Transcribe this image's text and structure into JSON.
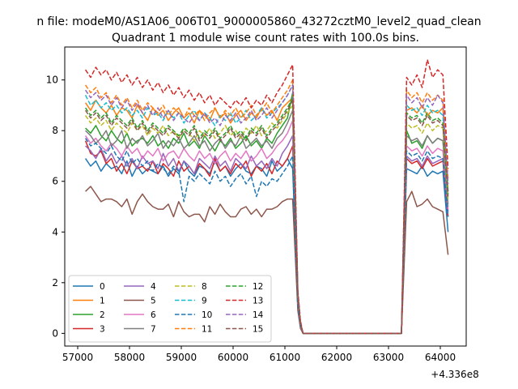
{
  "chart_data": {
    "type": "line",
    "suptitle": "n file: modeM0/AS1A06_006T01_9000005860_43272cztM0_level2_quad_clean",
    "title": "Quadrant 1 module wise count rates with 100.0s bins.",
    "xlabel": "",
    "ylabel": "",
    "x_offset_label": "+4.336e8",
    "xlim": [
      56750,
      64500
    ],
    "ylim": [
      -0.5,
      11.3
    ],
    "xticks": [
      57000,
      58000,
      59000,
      60000,
      61000,
      62000,
      63000,
      64000
    ],
    "xtick_labels": [
      "57000",
      "58000",
      "59000",
      "60000",
      "61000",
      "62000",
      "63000",
      "64000"
    ],
    "yticks": [
      0,
      2,
      4,
      6,
      8,
      10
    ],
    "ytick_labels": [
      "0",
      "2",
      "4",
      "6",
      "8",
      "10"
    ],
    "grid": false,
    "legend_position": "lower-left",
    "legend_columns": 4,
    "x_segment_1": [
      57150,
      57250,
      57350,
      57450,
      57550,
      57650,
      57750,
      57850,
      57950,
      58050,
      58150,
      58250,
      58350,
      58450,
      58550,
      58650,
      58750,
      58850,
      58950,
      59050,
      59150,
      59250,
      59350,
      59450,
      59550,
      59650,
      59750,
      59850,
      59950,
      60050,
      60150,
      60250,
      60350,
      60450,
      60550,
      60650,
      60750,
      60850,
      60950,
      61050,
      61150,
      61250,
      61300,
      61350
    ],
    "x_segment_2": [
      63250,
      63350,
      63450,
      63550,
      63650,
      63750,
      63850,
      63950,
      64050,
      64150
    ],
    "gap_value": 0,
    "series": [
      {
        "name": "0",
        "color": "#1f77b4",
        "dash": "solid",
        "v1": [
          6.9,
          6.6,
          6.8,
          6.4,
          6.7,
          6.5,
          6.6,
          6.3,
          6.8,
          6.2,
          6.6,
          6.3,
          6.5,
          6.4,
          6.3,
          6.6,
          6.2,
          6.5,
          6.3,
          6.8,
          6.4,
          6.2,
          6.6,
          6.5,
          6.3,
          6.8,
          6.4,
          6.6,
          6.2,
          6.5,
          6.7,
          6.4,
          6.3,
          6.6,
          6.5,
          6.2,
          6.8,
          6.4,
          6.6,
          6.9,
          6.5,
          1.0,
          0.3,
          0.0
        ],
        "v2": [
          0.0,
          6.5,
          6.4,
          6.3,
          6.6,
          6.2,
          6.4,
          6.3,
          6.4,
          4.0
        ]
      },
      {
        "name": "1",
        "color": "#ff7f0e",
        "dash": "solid",
        "v1": [
          9.1,
          8.8,
          9.2,
          8.9,
          8.7,
          9.0,
          8.6,
          8.9,
          8.8,
          8.5,
          9.0,
          8.7,
          8.4,
          8.9,
          8.6,
          8.8,
          8.4,
          8.7,
          8.9,
          8.5,
          8.7,
          8.3,
          8.8,
          8.6,
          8.4,
          8.9,
          8.5,
          8.7,
          8.3,
          8.6,
          8.8,
          8.4,
          8.7,
          8.5,
          8.9,
          8.6,
          8.8,
          8.4,
          8.9,
          9.1,
          9.3,
          1.4,
          0.4,
          0.0
        ],
        "v2": [
          0.0,
          8.8,
          8.9,
          8.7,
          9.0,
          8.6,
          8.8,
          8.7,
          8.9,
          5.6
        ]
      },
      {
        "name": "2",
        "color": "#2ca02c",
        "dash": "solid",
        "v1": [
          8.1,
          7.9,
          8.2,
          7.8,
          7.6,
          8.0,
          7.7,
          7.5,
          7.9,
          7.4,
          7.6,
          7.7,
          7.5,
          7.8,
          7.4,
          7.6,
          7.3,
          7.7,
          7.5,
          7.9,
          7.4,
          7.6,
          7.3,
          7.8,
          7.5,
          7.2,
          7.6,
          7.4,
          7.7,
          7.3,
          7.5,
          7.8,
          7.4,
          7.6,
          7.3,
          7.7,
          7.5,
          7.9,
          8.2,
          8.5,
          9.5,
          1.5,
          0.4,
          0.0
        ],
        "v2": [
          0.0,
          8.0,
          7.5,
          7.6,
          7.3,
          7.8,
          7.5,
          7.7,
          7.6,
          5.0
        ]
      },
      {
        "name": "3",
        "color": "#d62728",
        "dash": "solid",
        "v1": [
          7.6,
          7.1,
          7.0,
          7.2,
          6.7,
          6.9,
          6.4,
          6.7,
          6.3,
          6.8,
          6.5,
          6.6,
          6.4,
          6.8,
          6.3,
          6.7,
          6.5,
          6.2,
          6.8,
          6.4,
          6.6,
          6.3,
          6.7,
          6.5,
          6.2,
          6.9,
          6.4,
          6.6,
          6.3,
          6.7,
          6.5,
          6.8,
          6.2,
          6.6,
          6.4,
          6.7,
          6.3,
          6.8,
          6.6,
          6.9,
          7.4,
          1.2,
          0.3,
          0.0
        ],
        "v2": [
          0.0,
          6.9,
          6.7,
          6.8,
          6.5,
          6.9,
          6.6,
          6.7,
          6.8,
          4.6
        ]
      },
      {
        "name": "4",
        "color": "#9467bd",
        "dash": "solid",
        "v1": [
          7.4,
          7.2,
          6.9,
          7.3,
          6.8,
          7.1,
          6.7,
          7.0,
          6.6,
          6.9,
          6.5,
          7.0,
          6.7,
          6.8,
          6.5,
          7.1,
          6.6,
          6.9,
          6.4,
          6.8,
          6.6,
          6.3,
          6.9,
          6.7,
          6.5,
          7.0,
          6.6,
          6.8,
          6.4,
          6.9,
          6.7,
          6.5,
          7.0,
          6.6,
          6.8,
          6.5,
          6.9,
          6.6,
          7.1,
          7.4,
          7.8,
          1.2,
          0.3,
          0.0
        ],
        "v2": [
          0.0,
          7.0,
          6.8,
          6.9,
          6.6,
          7.0,
          6.7,
          6.8,
          6.9,
          4.8
        ]
      },
      {
        "name": "5",
        "color": "#8c564b",
        "dash": "solid",
        "v1": [
          5.6,
          5.8,
          5.5,
          5.2,
          5.3,
          5.3,
          5.2,
          5.0,
          5.3,
          4.7,
          5.2,
          5.5,
          5.2,
          5.0,
          4.9,
          4.9,
          5.1,
          4.6,
          5.2,
          4.8,
          4.6,
          4.7,
          4.7,
          4.4,
          5.0,
          4.7,
          5.1,
          4.8,
          4.6,
          4.6,
          4.9,
          5.0,
          4.7,
          4.9,
          4.6,
          4.9,
          4.9,
          5.0,
          5.2,
          5.3,
          5.3,
          0.9,
          0.2,
          0.0
        ],
        "v2": [
          0.0,
          5.2,
          5.6,
          5.0,
          5.1,
          5.3,
          5.0,
          4.9,
          4.8,
          3.1
        ]
      },
      {
        "name": "6",
        "color": "#e377c2",
        "dash": "solid",
        "v1": [
          7.8,
          7.5,
          7.7,
          7.4,
          7.2,
          7.5,
          7.3,
          7.0,
          7.4,
          7.1,
          7.3,
          6.9,
          7.2,
          7.0,
          7.3,
          6.8,
          7.1,
          7.2,
          6.9,
          7.3,
          7.0,
          6.8,
          7.2,
          6.9,
          7.1,
          6.7,
          7.0,
          7.2,
          6.8,
          7.1,
          6.9,
          7.2,
          6.8,
          7.0,
          7.3,
          6.9,
          7.1,
          7.4,
          7.6,
          7.9,
          8.4,
          1.3,
          0.3,
          0.0
        ],
        "v2": [
          0.0,
          7.4,
          7.2,
          7.3,
          7.0,
          7.4,
          7.1,
          7.3,
          7.2,
          4.9
        ]
      },
      {
        "name": "7",
        "color": "#7f7f7f",
        "dash": "solid",
        "v1": [
          8.0,
          7.8,
          7.5,
          7.7,
          8.0,
          7.4,
          7.6,
          8.0,
          7.3,
          7.7,
          7.5,
          7.8,
          7.4,
          7.6,
          7.9,
          7.3,
          7.6,
          7.4,
          7.7,
          7.3,
          7.5,
          7.8,
          7.4,
          7.6,
          7.2,
          7.5,
          7.7,
          7.3,
          7.6,
          7.4,
          7.8,
          7.3,
          7.5,
          7.7,
          7.4,
          7.6,
          7.3,
          7.7,
          7.9,
          8.3,
          8.8,
          1.4,
          0.4,
          0.0
        ],
        "v2": [
          0.0,
          7.8,
          7.6,
          7.7,
          7.4,
          7.8,
          7.5,
          7.7,
          7.6,
          5.1
        ]
      },
      {
        "name": "8",
        "color": "#bcbd22",
        "dash": "dashed",
        "v1": [
          8.6,
          8.3,
          8.5,
          8.2,
          8.4,
          8.0,
          8.3,
          8.1,
          7.9,
          8.3,
          8.0,
          8.2,
          7.8,
          8.1,
          7.9,
          8.2,
          7.8,
          8.0,
          7.7,
          8.1,
          7.9,
          7.6,
          8.0,
          7.8,
          8.1,
          7.7,
          7.9,
          8.2,
          7.8,
          8.0,
          7.7,
          8.1,
          7.9,
          8.2,
          7.8,
          8.0,
          8.3,
          8.1,
          8.4,
          8.7,
          9.0,
          1.4,
          0.4,
          0.0
        ],
        "v2": [
          0.0,
          8.3,
          8.1,
          8.2,
          7.9,
          8.3,
          8.0,
          8.2,
          8.1,
          5.3
        ]
      },
      {
        "name": "9",
        "color": "#17becf",
        "dash": "dashed",
        "v1": [
          9.4,
          9.0,
          9.2,
          8.9,
          9.1,
          8.8,
          9.0,
          8.7,
          8.9,
          8.6,
          8.8,
          8.5,
          8.9,
          8.6,
          8.7,
          8.4,
          8.8,
          8.5,
          8.7,
          8.3,
          8.6,
          8.8,
          8.4,
          8.7,
          8.5,
          8.2,
          8.6,
          8.4,
          8.7,
          8.3,
          8.5,
          8.8,
          8.4,
          8.6,
          8.9,
          8.5,
          8.7,
          8.9,
          9.1,
          9.4,
          9.8,
          1.5,
          0.4,
          0.0
        ],
        "v2": [
          0.0,
          9.0,
          8.8,
          8.9,
          8.6,
          9.0,
          8.7,
          8.8,
          8.6,
          5.6
        ]
      },
      {
        "name": "10",
        "color": "#1f77b4",
        "dash": "dashed",
        "v1": [
          7.7,
          7.4,
          7.5,
          7.3,
          7.1,
          7.4,
          7.0,
          6.8,
          7.2,
          6.7,
          6.9,
          6.6,
          6.8,
          6.4,
          6.7,
          6.5,
          6.3,
          6.6,
          6.4,
          5.2,
          6.2,
          6.0,
          6.3,
          6.1,
          5.9,
          6.4,
          6.0,
          6.2,
          5.8,
          6.1,
          6.3,
          5.9,
          6.2,
          5.4,
          6.0,
          5.8,
          6.1,
          6.0,
          6.3,
          6.6,
          7.0,
          1.1,
          0.3,
          0.0
        ],
        "v2": [
          0.0,
          7.2,
          7.0,
          7.1,
          6.8,
          7.2,
          6.9,
          7.0,
          6.9,
          4.6
        ]
      },
      {
        "name": "11",
        "color": "#ff7f0e",
        "dash": "dashed",
        "v1": [
          9.8,
          9.5,
          9.7,
          9.3,
          9.5,
          9.1,
          9.4,
          9.0,
          9.3,
          8.9,
          9.2,
          8.8,
          9.1,
          8.9,
          8.7,
          9.0,
          8.6,
          8.9,
          8.7,
          8.5,
          8.9,
          8.6,
          8.8,
          8.4,
          8.7,
          8.9,
          8.5,
          8.8,
          8.6,
          8.9,
          8.5,
          8.7,
          9.0,
          8.6,
          8.8,
          9.1,
          8.7,
          9.0,
          9.3,
          9.6,
          10.0,
          1.6,
          0.4,
          0.0
        ],
        "v2": [
          0.0,
          9.6,
          9.3,
          9.5,
          9.1,
          9.5,
          9.2,
          9.4,
          9.2,
          6.1
        ]
      },
      {
        "name": "12",
        "color": "#2ca02c",
        "dash": "dashed",
        "v1": [
          8.9,
          8.6,
          8.8,
          8.5,
          8.7,
          8.3,
          8.6,
          8.4,
          8.2,
          8.5,
          8.1,
          8.4,
          8.0,
          8.3,
          8.1,
          7.9,
          8.2,
          8.0,
          7.8,
          8.1,
          7.9,
          8.2,
          7.7,
          8.0,
          7.8,
          8.1,
          7.7,
          7.9,
          8.2,
          7.8,
          8.0,
          7.7,
          8.1,
          7.9,
          8.2,
          7.8,
          8.1,
          8.3,
          8.6,
          8.9,
          9.3,
          1.5,
          0.4,
          0.0
        ],
        "v2": [
          0.0,
          8.7,
          8.5,
          8.6,
          8.3,
          8.7,
          8.4,
          8.5,
          8.3,
          5.5
        ]
      },
      {
        "name": "13",
        "color": "#d62728",
        "dash": "dashed",
        "v1": [
          10.4,
          10.1,
          10.5,
          10.2,
          10.4,
          10.0,
          10.3,
          9.9,
          10.2,
          9.8,
          10.1,
          9.7,
          10.0,
          9.6,
          9.9,
          9.5,
          9.8,
          9.4,
          9.7,
          9.3,
          9.6,
          9.2,
          9.5,
          9.1,
          9.4,
          9.0,
          9.3,
          9.1,
          8.9,
          9.2,
          9.0,
          9.3,
          8.9,
          9.2,
          9.0,
          9.4,
          9.1,
          9.5,
          9.8,
          10.2,
          10.6,
          1.7,
          0.5,
          0.0
        ],
        "v2": [
          0.0,
          10.1,
          9.8,
          10.2,
          9.7,
          10.8,
          10.1,
          10.4,
          10.2,
          6.5
        ]
      },
      {
        "name": "14",
        "color": "#9467bd",
        "dash": "dashed",
        "v1": [
          9.6,
          9.3,
          9.5,
          9.2,
          9.4,
          9.0,
          9.3,
          8.9,
          9.2,
          8.8,
          9.1,
          8.7,
          9.0,
          8.6,
          8.9,
          8.5,
          8.8,
          8.4,
          8.7,
          8.5,
          8.3,
          8.6,
          8.4,
          8.7,
          8.3,
          8.5,
          8.2,
          8.6,
          8.4,
          8.7,
          8.3,
          8.5,
          8.8,
          8.4,
          8.6,
          8.9,
          8.5,
          8.8,
          9.1,
          9.4,
          9.8,
          1.6,
          0.4,
          0.0
        ],
        "v2": [
          0.0,
          9.4,
          9.1,
          9.3,
          8.9,
          9.3,
          9.0,
          9.4,
          9.1,
          5.9
        ]
      },
      {
        "name": "15",
        "color": "#8c564b",
        "dash": "dashed",
        "v1": [
          8.8,
          8.5,
          8.7,
          8.4,
          8.6,
          8.2,
          8.5,
          8.3,
          8.1,
          8.4,
          8.0,
          8.3,
          7.9,
          8.2,
          8.0,
          7.8,
          8.1,
          7.9,
          7.7,
          8.0,
          7.8,
          8.1,
          7.6,
          7.9,
          7.7,
          8.0,
          7.6,
          7.8,
          8.1,
          7.7,
          7.9,
          7.6,
          8.0,
          7.8,
          8.1,
          7.7,
          8.0,
          8.2,
          8.5,
          8.8,
          9.2,
          1.5,
          0.4,
          0.0
        ],
        "v2": [
          0.0,
          8.6,
          8.4,
          8.5,
          8.2,
          8.6,
          8.3,
          8.4,
          8.2,
          5.4
        ]
      }
    ]
  }
}
